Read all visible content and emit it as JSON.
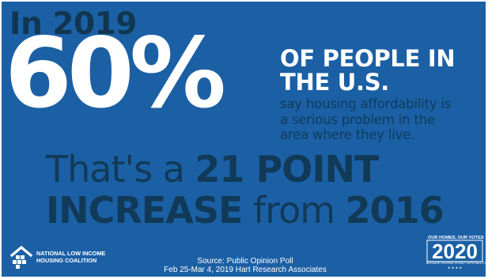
{
  "headline": {
    "year_line": "In 2019",
    "percent": "60%",
    "subject_line1": "OF PEOPLE IN",
    "subject_line2": "THE U.S.",
    "detail_line1": "say housing affordability is",
    "detail_line2": "a serious problem in the",
    "detail_line3": "area where they live."
  },
  "stat": {
    "line1_light": "That's a ",
    "line1_bold": "21 POINT",
    "line2_bold": "INCREASE",
    "line2_light": " from ",
    "line2_year": "2016"
  },
  "footer": {
    "org_line1": "NATIONAL LOW INCOME",
    "org_line2": "HOUSING COALITION",
    "source_line1": "Source: Public Opinion Poll",
    "source_line2": "Feb 25-Mar 4, 2019 Hart Research Associates",
    "badge_top": "OUR HOMES, OUR VOTES",
    "badge_year": "2020",
    "badge_bottom": "BECAUSE HOUSING IS BUILT WITH BALLOTS",
    "badge_stars": "★ ★ ★ ★"
  },
  "colors": {
    "background": "#1b60a5",
    "dark_navy": "#113650",
    "white": "#ffffff"
  },
  "icons": {
    "org_logo": "nlihc-house-logo-icon"
  }
}
